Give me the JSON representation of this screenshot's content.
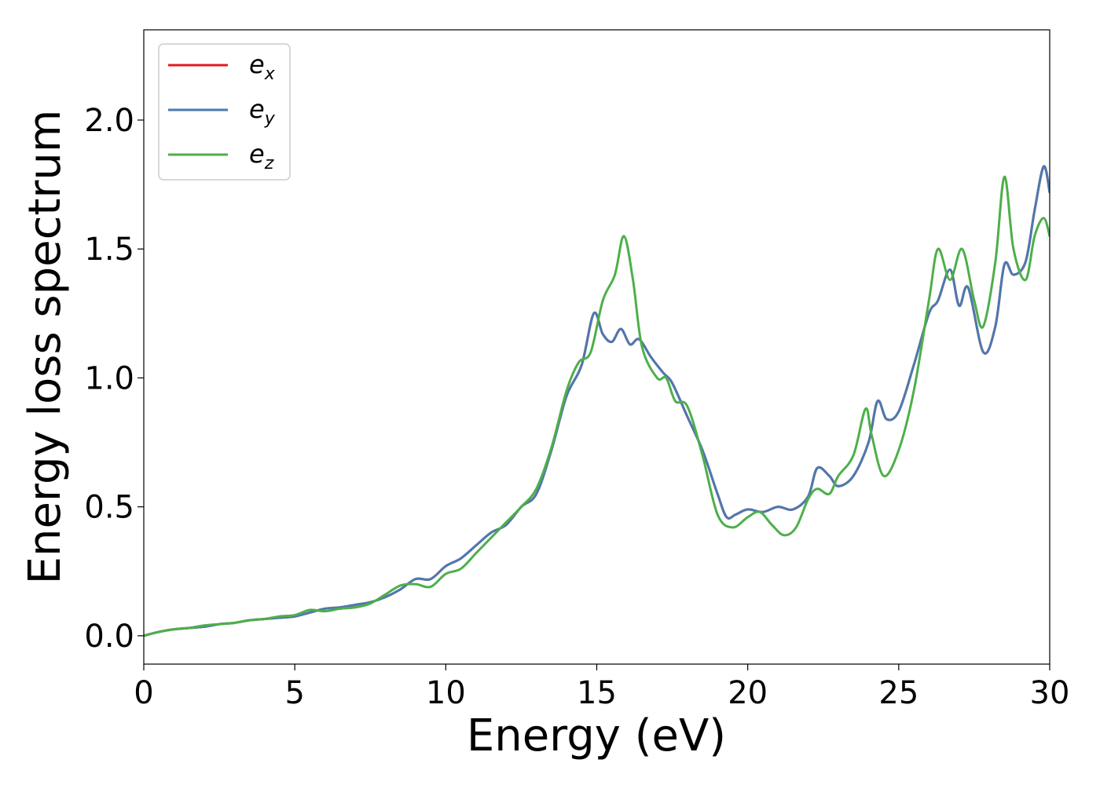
{
  "chart_data": {
    "type": "line",
    "title": "",
    "xlabel": "Energy (eV)",
    "ylabel": "Energy loss spectrum",
    "xlim": [
      0,
      30
    ],
    "ylim": [
      -0.11,
      2.35
    ],
    "xticks": [
      0,
      5,
      10,
      15,
      20,
      25,
      30
    ],
    "xtick_labels": [
      "0",
      "5",
      "10",
      "15",
      "20",
      "25",
      "30"
    ],
    "yticks": [
      0.0,
      0.5,
      1.0,
      1.5,
      2.0
    ],
    "ytick_labels": [
      "0.0",
      "0.5",
      "1.0",
      "1.5",
      "2.0"
    ],
    "grid": false,
    "legend_position": "top-left",
    "series": [
      {
        "name": "e_x",
        "legend_base": "e",
        "legend_sub": "x",
        "color": "#e41a1c",
        "x": [
          0,
          0.5,
          1,
          1.5,
          2,
          2.5,
          3,
          3.5,
          4,
          4.5,
          5,
          5.5,
          6,
          6.5,
          7,
          7.5,
          8,
          8.5,
          9,
          9.5,
          10,
          10.5,
          11,
          11.5,
          12,
          12.5,
          13,
          13.5,
          14,
          14.5,
          14.9,
          15.2,
          15.5,
          15.8,
          16.1,
          16.4,
          16.8,
          17.2,
          17.5,
          18,
          18.5,
          19,
          19.3,
          19.6,
          20,
          20.5,
          21,
          21.5,
          22,
          22.3,
          22.7,
          23,
          23.5,
          24,
          24.3,
          24.6,
          25,
          25.5,
          26,
          26.3,
          26.7,
          27,
          27.3,
          27.8,
          28.2,
          28.5,
          28.8,
          29.2,
          29.5,
          29.8,
          30
        ],
        "y": [
          0,
          0.015,
          0.025,
          0.03,
          0.035,
          0.045,
          0.05,
          0.06,
          0.065,
          0.07,
          0.075,
          0.09,
          0.105,
          0.11,
          0.12,
          0.13,
          0.15,
          0.18,
          0.22,
          0.22,
          0.27,
          0.3,
          0.35,
          0.4,
          0.43,
          0.5,
          0.55,
          0.72,
          0.93,
          1.05,
          1.25,
          1.17,
          1.14,
          1.19,
          1.13,
          1.15,
          1.08,
          1.02,
          0.98,
          0.85,
          0.72,
          0.55,
          0.46,
          0.47,
          0.49,
          0.48,
          0.5,
          0.49,
          0.54,
          0.65,
          0.62,
          0.58,
          0.62,
          0.75,
          0.91,
          0.84,
          0.87,
          1.05,
          1.25,
          1.3,
          1.42,
          1.28,
          1.35,
          1.1,
          1.2,
          1.44,
          1.4,
          1.45,
          1.65,
          1.82,
          1.72
        ]
      },
      {
        "name": "e_y",
        "legend_base": "e",
        "legend_sub": "y",
        "color": "#4a7ab0",
        "x": [
          0,
          0.5,
          1,
          1.5,
          2,
          2.5,
          3,
          3.5,
          4,
          4.5,
          5,
          5.5,
          6,
          6.5,
          7,
          7.5,
          8,
          8.5,
          9,
          9.5,
          10,
          10.5,
          11,
          11.5,
          12,
          12.5,
          13,
          13.5,
          14,
          14.5,
          14.9,
          15.2,
          15.5,
          15.8,
          16.1,
          16.4,
          16.8,
          17.2,
          17.5,
          18,
          18.5,
          19,
          19.3,
          19.6,
          20,
          20.5,
          21,
          21.5,
          22,
          22.3,
          22.7,
          23,
          23.5,
          24,
          24.3,
          24.6,
          25,
          25.5,
          26,
          26.3,
          26.7,
          27,
          27.3,
          27.8,
          28.2,
          28.5,
          28.8,
          29.2,
          29.5,
          29.8,
          30
        ],
        "y": [
          0,
          0.015,
          0.025,
          0.03,
          0.035,
          0.045,
          0.05,
          0.06,
          0.065,
          0.07,
          0.075,
          0.09,
          0.105,
          0.11,
          0.12,
          0.13,
          0.15,
          0.18,
          0.22,
          0.22,
          0.27,
          0.3,
          0.35,
          0.4,
          0.43,
          0.5,
          0.55,
          0.72,
          0.93,
          1.05,
          1.25,
          1.17,
          1.14,
          1.19,
          1.13,
          1.15,
          1.08,
          1.02,
          0.98,
          0.85,
          0.72,
          0.55,
          0.46,
          0.47,
          0.49,
          0.48,
          0.5,
          0.49,
          0.54,
          0.65,
          0.62,
          0.58,
          0.62,
          0.75,
          0.91,
          0.84,
          0.87,
          1.05,
          1.25,
          1.3,
          1.42,
          1.28,
          1.35,
          1.1,
          1.2,
          1.44,
          1.4,
          1.45,
          1.65,
          1.82,
          1.72
        ]
      },
      {
        "name": "e_z",
        "legend_base": "e",
        "legend_sub": "z",
        "color": "#4daf4a",
        "x": [
          0,
          0.5,
          1,
          1.5,
          2,
          2.5,
          3,
          3.5,
          4,
          4.5,
          5,
          5.5,
          6,
          6.5,
          7,
          7.5,
          8,
          8.5,
          9,
          9.5,
          10,
          10.5,
          11,
          11.5,
          12,
          12.5,
          13,
          13.5,
          14,
          14.4,
          14.8,
          15.2,
          15.6,
          15.9,
          16.2,
          16.5,
          17,
          17.3,
          17.6,
          18,
          18.5,
          19,
          19.5,
          20,
          20.4,
          20.8,
          21.2,
          21.6,
          22,
          22.3,
          22.7,
          23,
          23.5,
          23.9,
          24.1,
          24.5,
          25,
          25.5,
          26,
          26.3,
          26.7,
          27.1,
          27.5,
          27.8,
          28.2,
          28.5,
          28.8,
          29.2,
          29.5,
          29.8,
          30
        ],
        "y": [
          0,
          0.015,
          0.025,
          0.03,
          0.04,
          0.045,
          0.05,
          0.06,
          0.065,
          0.075,
          0.08,
          0.1,
          0.095,
          0.105,
          0.11,
          0.125,
          0.16,
          0.195,
          0.2,
          0.19,
          0.24,
          0.26,
          0.32,
          0.38,
          0.44,
          0.5,
          0.57,
          0.73,
          0.95,
          1.06,
          1.1,
          1.3,
          1.4,
          1.55,
          1.38,
          1.12,
          1.0,
          1.0,
          0.91,
          0.89,
          0.7,
          0.47,
          0.42,
          0.46,
          0.48,
          0.43,
          0.39,
          0.42,
          0.53,
          0.57,
          0.55,
          0.62,
          0.7,
          0.88,
          0.78,
          0.62,
          0.72,
          0.95,
          1.3,
          1.5,
          1.38,
          1.5,
          1.3,
          1.2,
          1.45,
          1.78,
          1.5,
          1.38,
          1.55,
          1.62,
          1.55
        ]
      }
    ]
  }
}
